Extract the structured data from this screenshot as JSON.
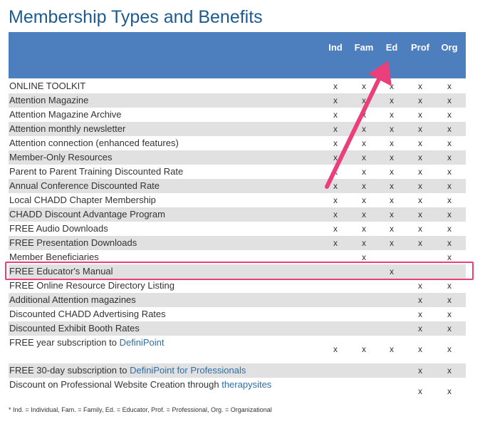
{
  "title": "Membership Types and Benefits",
  "columns": [
    "Ind",
    "Fam",
    "Ed",
    "Prof",
    "Org"
  ],
  "mark": "x",
  "rows": [
    {
      "label": "ONLINE TOOLKIT",
      "marks": [
        true,
        true,
        true,
        true,
        true
      ]
    },
    {
      "label": "Attention Magazine",
      "marks": [
        true,
        true,
        true,
        true,
        true
      ]
    },
    {
      "label": "Attention Magazine Archive",
      "marks": [
        true,
        true,
        true,
        true,
        true
      ]
    },
    {
      "label": "Attention monthly newsletter",
      "marks": [
        true,
        true,
        true,
        true,
        true
      ]
    },
    {
      "label": "Attention connection (enhanced features)",
      "marks": [
        true,
        true,
        true,
        true,
        true
      ]
    },
    {
      "label": "Member-Only Resources",
      "marks": [
        true,
        true,
        true,
        true,
        true
      ]
    },
    {
      "label": "Parent to Parent Training Discounted Rate",
      "marks": [
        true,
        true,
        true,
        true,
        true
      ]
    },
    {
      "label": "Annual Conference Discounted Rate",
      "marks": [
        true,
        true,
        true,
        true,
        true
      ]
    },
    {
      "label": "Local CHADD Chapter Membership",
      "marks": [
        true,
        true,
        true,
        true,
        true
      ]
    },
    {
      "label": "CHADD Discount Advantage Program",
      "marks": [
        true,
        true,
        true,
        true,
        true
      ]
    },
    {
      "label": "FREE Audio Downloads",
      "marks": [
        true,
        true,
        true,
        true,
        true
      ]
    },
    {
      "label": "FREE Presentation Downloads",
      "marks": [
        true,
        true,
        true,
        true,
        true
      ]
    },
    {
      "label": "Member Beneficiaries",
      "marks": [
        false,
        true,
        false,
        false,
        true
      ]
    },
    {
      "label": "FREE Educator's Manual",
      "marks": [
        false,
        false,
        true,
        false,
        false
      ],
      "highlighted": true
    },
    {
      "label": "FREE Online Resource Directory Listing",
      "marks": [
        false,
        false,
        false,
        true,
        true
      ]
    },
    {
      "label": "Additional Attention magazines",
      "marks": [
        false,
        false,
        false,
        true,
        true
      ]
    },
    {
      "label": "Discounted CHADD Advertising Rates",
      "marks": [
        false,
        false,
        false,
        true,
        true
      ]
    },
    {
      "label": "Discounted Exhibit Booth Rates",
      "marks": [
        false,
        false,
        false,
        true,
        true
      ]
    },
    {
      "label": "FREE year subscription to ",
      "link": "DefiniPoint",
      "tall": true,
      "marks": [
        true,
        true,
        true,
        true,
        true
      ]
    },
    {
      "label": "FREE 30-day subscription to ",
      "link": "DefiniPoint for Professionals",
      "marks": [
        false,
        false,
        false,
        true,
        true
      ]
    },
    {
      "label": "Discount on Professional Website Creation through ",
      "link": "therapysites",
      "tall": true,
      "marks": [
        false,
        false,
        false,
        true,
        true
      ]
    }
  ],
  "footnote": "* Ind. = Individual, Fam. = Family, Ed. = Educator, Prof. = Professional, Org. = Organizational",
  "colors": {
    "header_bg": "#4d7fbf",
    "title": "#1d5b8f",
    "row_alt": "#e1e1e1",
    "link": "#2e6ea6",
    "annotation": "#ea3f7a"
  }
}
